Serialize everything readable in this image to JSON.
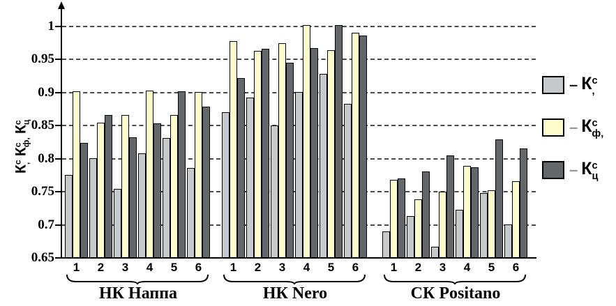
{
  "chart_data": {
    "type": "bar",
    "title": "",
    "ylabel_terms": [
      {
        "base": "К",
        "sup": "с",
        "sub": ","
      },
      {
        "base": "К",
        "sup": "с",
        "sub": "ф,"
      },
      {
        "base": "К",
        "sup": "с",
        "sub": "ц"
      }
    ],
    "ylim": [
      0.65,
      1.0
    ],
    "ytick_labels": [
      "1",
      "0.95",
      "0.9",
      "0.85",
      "0.8",
      "0.75",
      "0.7",
      "0.65"
    ],
    "ytick_values": [
      1,
      0.95,
      0.9,
      0.85,
      0.8,
      0.75,
      0.7,
      0.65
    ],
    "grid": "dashed-horizontal",
    "legend_position": "right",
    "series_names": [
      "К^с",
      "К_ф^с",
      "К_ц^с"
    ],
    "series_colors": [
      "#c6c9cc",
      "#fbfbcb",
      "#64676a"
    ],
    "groups": [
      {
        "label": "НК Наппа",
        "categories": [
          "1",
          "2",
          "3",
          "4",
          "5",
          "6"
        ],
        "series": [
          {
            "name": "К^с",
            "values": [
              0.775,
              0.801,
              0.754,
              0.808,
              0.831,
              0.786
            ]
          },
          {
            "name": "К_ф^с",
            "values": [
              0.902,
              0.854,
              0.866,
              0.903,
              0.866,
              0.901
            ]
          },
          {
            "name": "К_ц^с",
            "values": [
              0.824,
              0.866,
              0.832,
              0.853,
              0.902,
              0.879
            ]
          }
        ]
      },
      {
        "label": "НК Nero",
        "categories": [
          "1",
          "2",
          "3",
          "4",
          "5",
          "6"
        ],
        "series": [
          {
            "name": "К^с",
            "values": [
              0.87,
              0.892,
              0.85,
              0.901,
              0.928,
              0.883
            ]
          },
          {
            "name": "К_ф^с",
            "values": [
              0.978,
              0.963,
              0.975,
              1.002,
              0.964,
              0.99
            ]
          },
          {
            "name": "К_ц^с",
            "values": [
              0.922,
              0.966,
              0.945,
              0.967,
              1.002,
              0.986
            ]
          }
        ]
      },
      {
        "label": "СК Positano",
        "categories": [
          "1",
          "2",
          "3",
          "4",
          "5",
          "6"
        ],
        "series": [
          {
            "name": "К^с",
            "values": [
              0.69,
              0.713,
              0.667,
              0.723,
              0.748,
              0.701
            ]
          },
          {
            "name": "К_ф^с",
            "values": [
              0.768,
              0.739,
              0.75,
              0.789,
              0.752,
              0.766
            ]
          },
          {
            "name": "К_ц^с",
            "values": [
              0.77,
              0.781,
              0.805,
              0.787,
              0.829,
              0.816
            ]
          }
        ]
      }
    ]
  },
  "legend": {
    "items": [
      {
        "color": "#c6c9cc",
        "dash": "–",
        "dash_color": "#222222",
        "base": "К",
        "sup": "с",
        "sub": ","
      },
      {
        "color": "#fbfbcb",
        "dash": "–",
        "dash_color": "#999999",
        "base": "К",
        "sup": "с",
        "sub": "ф,"
      },
      {
        "color": "#64676a",
        "dash": "–",
        "dash_color": "#999999",
        "base": "К",
        "sup": "с",
        "sub": "ц"
      }
    ]
  }
}
